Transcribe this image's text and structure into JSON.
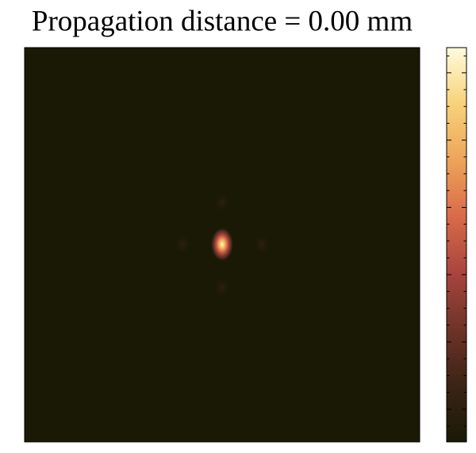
{
  "chart_data": {
    "type": "heatmap",
    "title": "Propagation distance = 0.00 mm",
    "colormap": [
      "#1a1905",
      "#3b2414",
      "#6e3328",
      "#a8453d",
      "#d96a4a",
      "#eda45a",
      "#f7d27a",
      "#fffbdc"
    ]
  }
}
